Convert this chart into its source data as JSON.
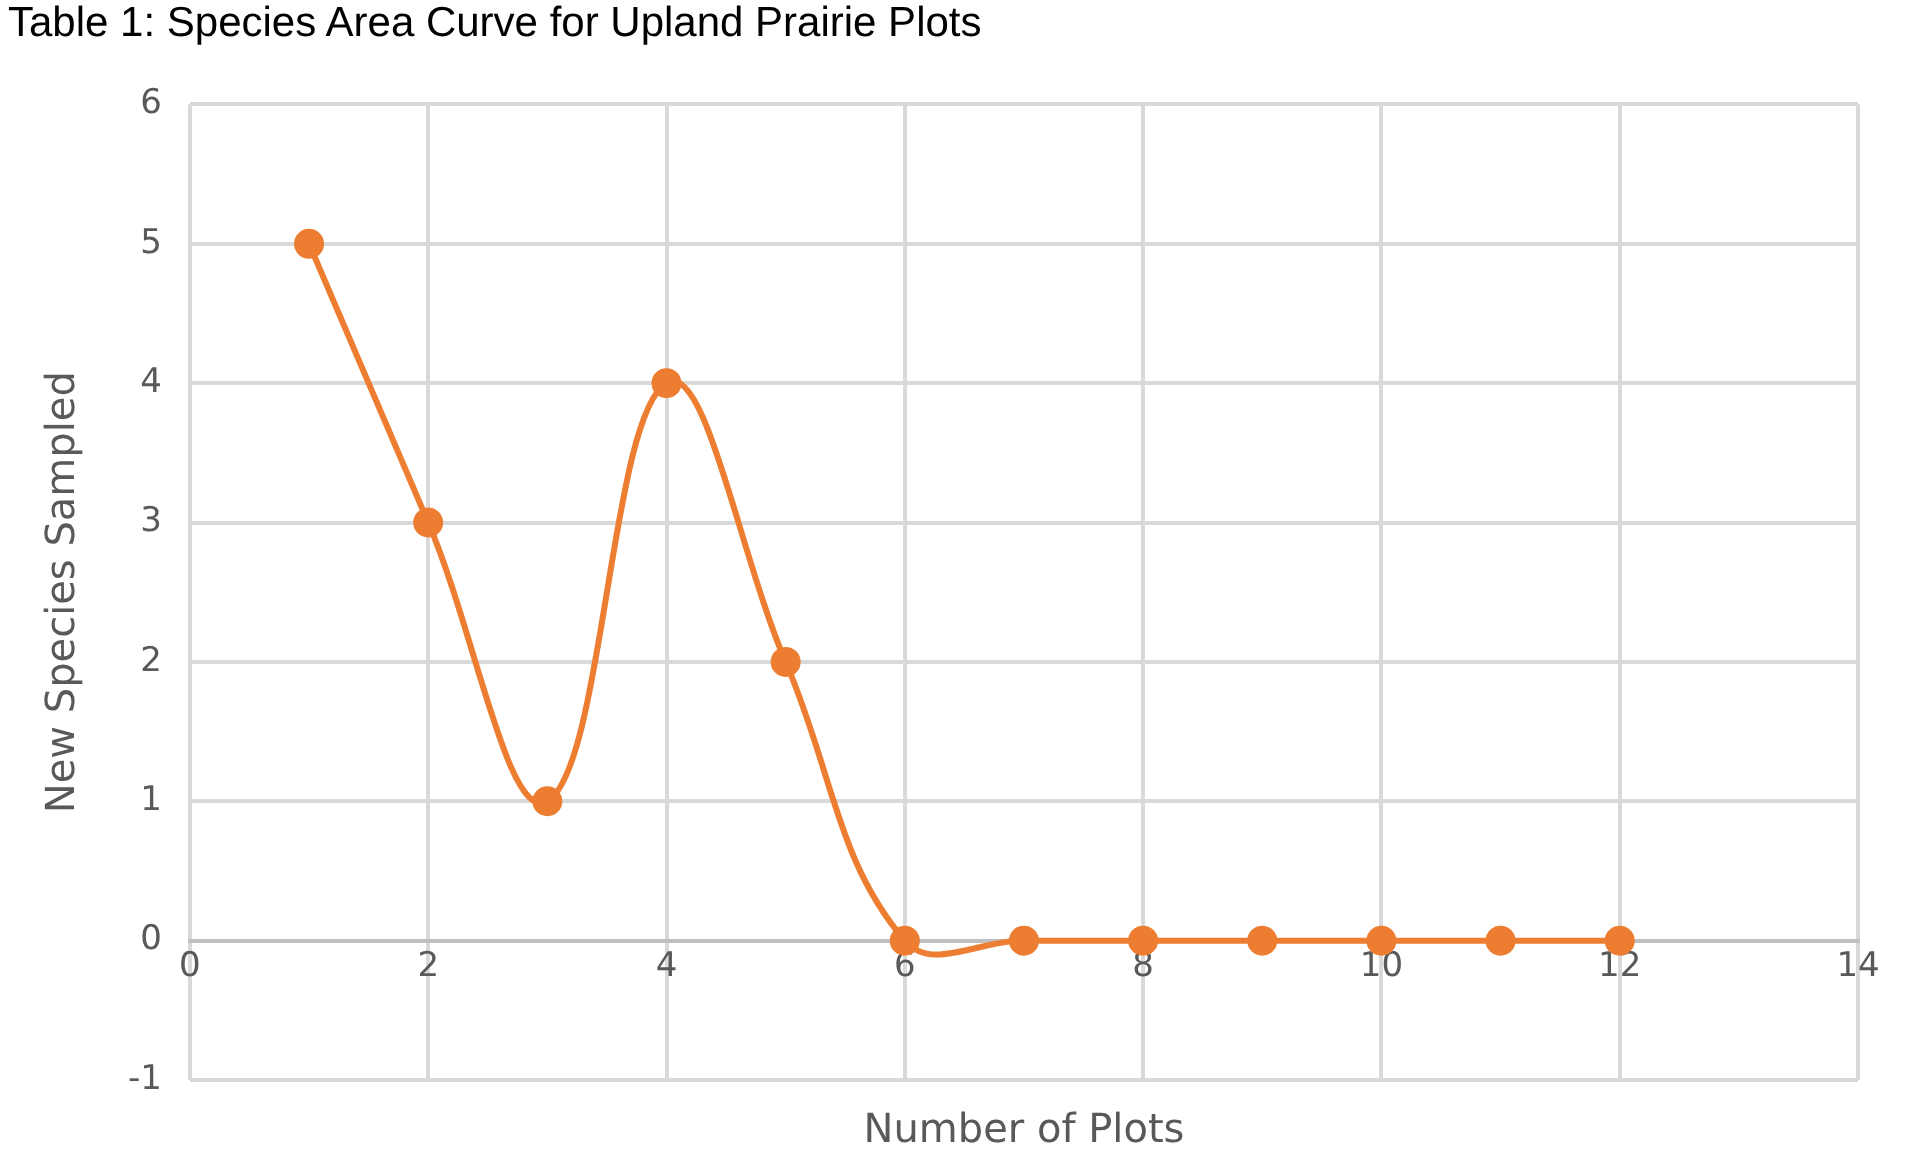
{
  "chart_data": {
    "type": "line",
    "title": "Table 1: Species Area Curve for Upland Prairie Plots",
    "xlabel": "Number of Plots",
    "ylabel": "New Species Sampled",
    "x": [
      1,
      2,
      3,
      4,
      5,
      6,
      7,
      8,
      9,
      10,
      11,
      12
    ],
    "series": [
      {
        "color": "#ed7d31",
        "values": [
          5,
          3,
          1,
          4,
          2,
          0,
          0,
          0,
          0,
          0,
          0,
          0
        ]
      }
    ],
    "xlim": [
      0,
      14
    ],
    "xticks": [
      0,
      2,
      4,
      6,
      8,
      10,
      12,
      14
    ],
    "ylim": [
      -1,
      6
    ],
    "yticks": [
      -1,
      0,
      1,
      2,
      3,
      4,
      5,
      6
    ],
    "grid": true,
    "legend": false,
    "marker": "circle",
    "line_style": "solid"
  }
}
